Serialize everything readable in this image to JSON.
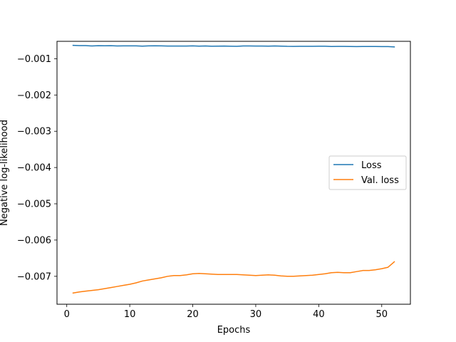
{
  "chart_data": {
    "type": "line",
    "title": "",
    "xlabel": "Epochs",
    "ylabel": "Negative log-likelihood",
    "xlim": [
      -1.55,
      54.55
    ],
    "ylim": [
      -0.00777,
      -0.00052
    ],
    "xticks": [
      0,
      10,
      20,
      30,
      40,
      50
    ],
    "yticks": [
      -0.007,
      -0.006,
      -0.005,
      -0.004,
      -0.003,
      -0.002,
      -0.001
    ],
    "ytick_labels": [
      "−0.007",
      "−0.006",
      "−0.005",
      "−0.004",
      "−0.003",
      "−0.002",
      "−0.001"
    ],
    "grid": false,
    "legend": "center-right",
    "x": [
      1,
      2,
      3,
      4,
      5,
      6,
      7,
      8,
      9,
      10,
      11,
      12,
      13,
      14,
      15,
      16,
      17,
      18,
      19,
      20,
      21,
      22,
      23,
      24,
      25,
      26,
      27,
      28,
      29,
      30,
      31,
      32,
      33,
      34,
      35,
      36,
      37,
      38,
      39,
      40,
      41,
      42,
      43,
      44,
      45,
      46,
      47,
      48,
      49,
      50,
      51,
      52
    ],
    "series": [
      {
        "name": "Loss",
        "color": "#1f77b4",
        "values": [
          -0.00063,
          -0.000637,
          -0.000638,
          -0.000648,
          -0.000641,
          -0.000643,
          -0.000641,
          -0.000647,
          -0.000646,
          -0.000646,
          -0.000646,
          -0.000652,
          -0.000646,
          -0.000642,
          -0.000646,
          -0.000649,
          -0.000649,
          -0.000649,
          -0.000649,
          -0.000646,
          -0.000652,
          -0.000648,
          -0.000655,
          -0.000652,
          -0.000651,
          -0.000655,
          -0.000657,
          -0.000647,
          -0.000647,
          -0.000649,
          -0.000651,
          -0.000652,
          -0.000648,
          -0.000653,
          -0.000658,
          -0.000659,
          -0.000658,
          -0.000657,
          -0.000658,
          -0.000656,
          -0.000656,
          -0.000663,
          -0.00066,
          -0.00066,
          -0.000662,
          -0.000665,
          -0.000663,
          -0.000663,
          -0.000662,
          -0.000665,
          -0.000664,
          -0.000673
        ]
      },
      {
        "name": "Val. loss",
        "color": "#ff7f0e",
        "values": [
          -0.00746,
          -0.00743,
          -0.00741,
          -0.00739,
          -0.00737,
          -0.00734,
          -0.00731,
          -0.00728,
          -0.00725,
          -0.00722,
          -0.00718,
          -0.00713,
          -0.0071,
          -0.00707,
          -0.00704,
          -0.007,
          -0.00698,
          -0.00698,
          -0.00696,
          -0.00693,
          -0.00692,
          -0.00693,
          -0.00694,
          -0.00695,
          -0.00695,
          -0.00695,
          -0.00695,
          -0.00696,
          -0.00697,
          -0.00698,
          -0.00697,
          -0.00696,
          -0.00697,
          -0.00699,
          -0.007,
          -0.007,
          -0.00699,
          -0.00698,
          -0.00697,
          -0.00695,
          -0.00693,
          -0.0069,
          -0.00689,
          -0.0069,
          -0.0069,
          -0.00687,
          -0.00684,
          -0.00684,
          -0.00682,
          -0.00679,
          -0.00675,
          -0.0066
        ]
      }
    ]
  }
}
